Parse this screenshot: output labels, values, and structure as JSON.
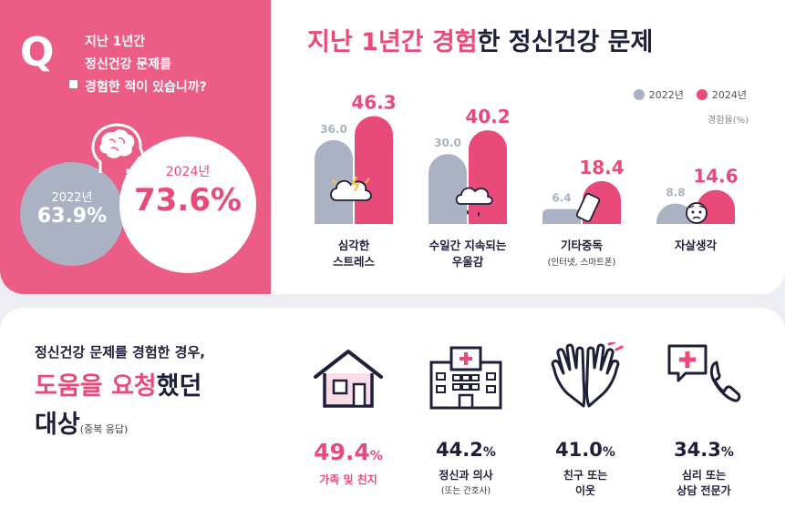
{
  "question": {
    "letter": "Q",
    "lines": [
      "지난 1년간",
      "정신건강 문제를",
      "경험한 적이 있습니까?"
    ]
  },
  "overall": {
    "y2022_label": "2022년",
    "y2022_value": "63.9%",
    "y2024_label": "2024년",
    "y2024_value": "73.6%"
  },
  "chart_title": {
    "part1": "지난 1년간 ",
    "part2": "경험",
    "part3": "한 ",
    "part4": "정신건강 문제"
  },
  "legend": {
    "a": "2022년",
    "b": "2024년"
  },
  "unit_label": "경험율(%)",
  "colors": {
    "pink": "#e84b79",
    "gray": "#aab2c4",
    "navy": "#1f1f3a",
    "panel_pink": "#ec5d86"
  },
  "chart_data": {
    "type": "bar",
    "title": "지난 1년간 경험한 정신건강 문제",
    "ylabel": "경험율(%)",
    "ylim": [
      0,
      50
    ],
    "categories": [
      {
        "line1": "심각한",
        "line2": "스트레스",
        "sub": "",
        "icon": "stress-cloud-icon"
      },
      {
        "line1": "수일간 지속되는",
        "line2": "우울감",
        "sub": "",
        "icon": "rain-cloud-icon"
      },
      {
        "line1": "기타중독",
        "line2": "",
        "sub": "(인터넷, 스마트폰)",
        "icon": "smartphone-icon"
      },
      {
        "line1": "자살생각",
        "line2": "",
        "sub": "",
        "icon": "worried-face-icon"
      }
    ],
    "series": [
      {
        "name": "2022년",
        "values": [
          36.0,
          30.0,
          6.4,
          8.8
        ],
        "labels": [
          "36.0",
          "30.0",
          "6.4",
          "8.8"
        ]
      },
      {
        "name": "2024년",
        "values": [
          46.3,
          40.2,
          18.4,
          14.6
        ],
        "labels": [
          "46.3",
          "40.2",
          "18.4",
          "14.6"
        ]
      }
    ],
    "legend": "top-right",
    "grid": false
  },
  "help": {
    "line1": "정신건강 문제를 경험한 경우,",
    "line2_a": "도움",
    "line2_b": "을 ",
    "line2_c": "요청",
    "line2_d": "했던",
    "line3": "대상",
    "line3_note": "(중복 응답)",
    "items": [
      {
        "value": "49.4",
        "sign": "%",
        "label": "가족 및 친지",
        "sub": "",
        "icon": "house-icon"
      },
      {
        "value": "44.2",
        "sign": "%",
        "label": "정신과 의사",
        "sub": "(또는 간호사)",
        "icon": "hospital-icon"
      },
      {
        "value": "41.0",
        "sign": "%",
        "label": "친구 또는",
        "label2": "이웃",
        "sub": "",
        "icon": "high-five-icon"
      },
      {
        "value": "34.3",
        "sign": "%",
        "label": "심리 또는",
        "label2": "상담 전문가",
        "sub": "",
        "icon": "medical-phone-icon"
      }
    ]
  }
}
